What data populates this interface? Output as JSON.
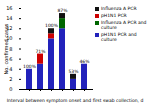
{
  "chart_data": {
    "type": "bar",
    "stacked": true,
    "categories": [
      "1",
      "2",
      "3",
      "4",
      "5",
      "6"
    ],
    "series": [
      {
        "name": "pH1N1 PCR and culture",
        "color": "#2222bb",
        "values": [
          4,
          5,
          10,
          12,
          2,
          5
        ]
      },
      {
        "name": "Influenza A PCR and culture",
        "color": "#006600",
        "values": [
          0,
          0,
          0,
          2,
          0,
          0
        ]
      },
      {
        "name": "pH1N1 PCR",
        "color": "#cc0000",
        "values": [
          0,
          2,
          1,
          0,
          0,
          0
        ]
      },
      {
        "name": "Influenza A PCR",
        "color": "#111111",
        "values": [
          0,
          0,
          1,
          1,
          1,
          0
        ]
      }
    ],
    "xlabel": "Interval between symptom onset and first swab collection, d",
    "ylabel": "No. confirmed cases",
    "ylim": [
      0,
      16
    ],
    "yticks": [
      0,
      2,
      4,
      6,
      8,
      10,
      12,
      14,
      16
    ],
    "annotations": [
      {
        "category": "1",
        "text": "100%"
      },
      {
        "category": "2",
        "text": "71%"
      },
      {
        "category": "3",
        "text": "100%"
      },
      {
        "category": "4",
        "text": "87%"
      },
      {
        "category": "5",
        "text": "53%"
      },
      {
        "category": "6",
        "text": "46%"
      }
    ],
    "legend": "right",
    "grid": false
  }
}
